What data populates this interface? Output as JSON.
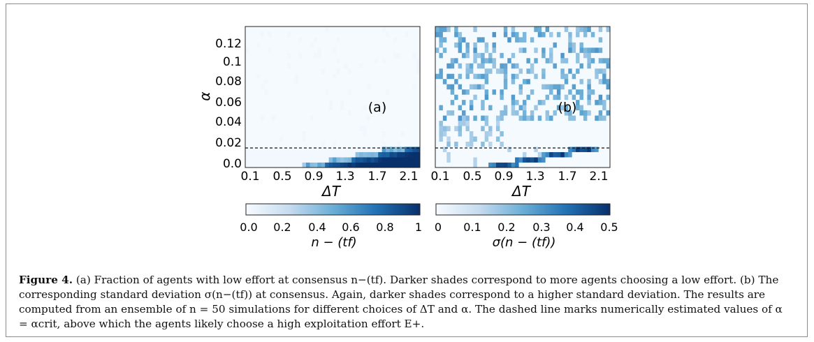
{
  "caption": {
    "label": "Figure 4.",
    "text": "(a) Fraction of agents with low effort at consensus n−(tf). Darker shades correspond to more agents choosing a low effort. (b) The corresponding standard deviation σ(n−(tf)) at consensus. Again, darker shades correspond to a higher standard deviation. The results are computed from an ensemble of n = 50 simulations for different choices of ΔT and α. The dashed line marks numerically estimated values of α = αcrit, above which the agents likely choose a high exploitation effort E+."
  },
  "colors": {
    "cmap_low": "#f7fbff",
    "cmap_mid": "#6baed6",
    "cmap_high": "#08306b",
    "dashed_line": "#111111"
  },
  "chart_data": [
    {
      "type": "heatmap",
      "panel_label": "(a)",
      "xlabel": "ΔT",
      "ylabel": "α",
      "x_ticks": [
        "0.1",
        "0.5",
        "0.9",
        "1.3",
        "1.7",
        "2.1"
      ],
      "y_ticks": [
        "0.0",
        "0.02",
        "0.04",
        "0.06",
        "0.08",
        "0.1",
        "0.12"
      ],
      "xlim": [
        0.1,
        2.4
      ],
      "ylim": [
        0.0,
        0.135
      ],
      "alpha_crit": 0.018,
      "colorbar": {
        "label": "n − (tf)",
        "ticks": [
          "0.0",
          "0.2",
          "0.4",
          "0.6",
          "0.8",
          "1"
        ],
        "range": [
          0,
          1
        ]
      },
      "description_values": {
        "region_below_alpha_crit": "value rises from ~0 at small ΔT to 1 at large ΔT; boundary ΔT≈0.8 at α=0, ΔT≈2.1 at α≈0.018",
        "region_above_alpha_crit": 0.0
      }
    },
    {
      "type": "heatmap",
      "panel_label": "(b)",
      "xlabel": "ΔT",
      "ylabel": "",
      "x_ticks": [
        "0.1",
        "0.5",
        "0.9",
        "1.3",
        "1.7",
        "2.1"
      ],
      "y_ticks": [],
      "xlim": [
        0.1,
        2.4
      ],
      "ylim": [
        0.0,
        0.135
      ],
      "alpha_crit": 0.018,
      "colorbar": {
        "label": "σ(n − (tf))",
        "ticks": [
          "0",
          "0.1",
          "0.2",
          "0.3",
          "0.4",
          "0.5"
        ],
        "range": [
          0,
          0.5
        ]
      },
      "description_values": {
        "upper_region": "scattered values ~0.1–0.2 for α between 0.04 and 0.135",
        "band_near_boundary": "values ~0.3–0.5 along the transition of panel (a)"
      }
    }
  ]
}
